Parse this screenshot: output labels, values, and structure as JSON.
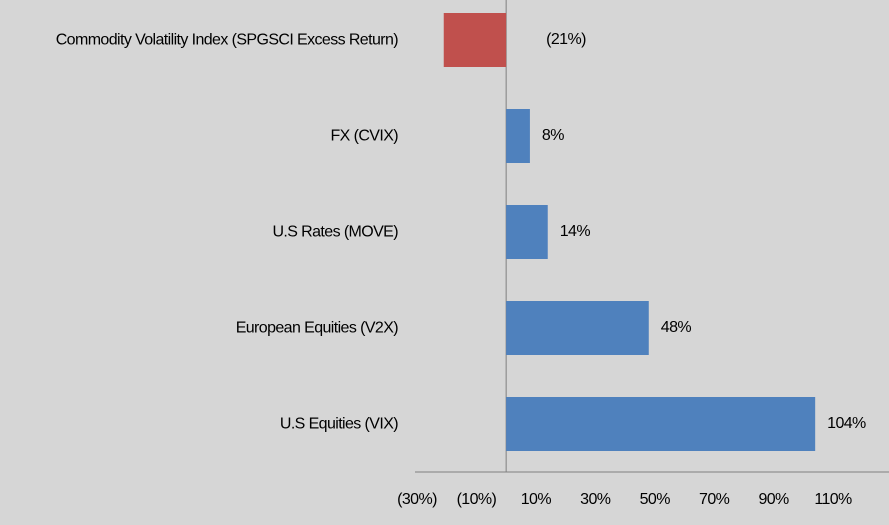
{
  "chart_data": {
    "type": "bar",
    "orientation": "horizontal",
    "categories": [
      "Commodity Volatility Index (SPGSCI Excess Return)",
      "FX (CVIX)",
      "U.S Rates (MOVE)",
      "European Equities (V2X)",
      "U.S Equities (VIX)"
    ],
    "values": [
      -21,
      8,
      14,
      48,
      104
    ],
    "value_labels": [
      "(21%)",
      "8%",
      "14%",
      "48%",
      "104%"
    ],
    "colors": [
      "#c0504d",
      "#4f81bd",
      "#4f81bd",
      "#4f81bd",
      "#4f81bd"
    ],
    "negative_label_color": "#ff0000",
    "xlim": [
      -30,
      110
    ],
    "xticks": [
      {
        "value": -30,
        "label": "(30%)"
      },
      {
        "value": -10,
        "label": "(10%)"
      },
      {
        "value": 10,
        "label": "10%"
      },
      {
        "value": 30,
        "label": "30%"
      },
      {
        "value": 50,
        "label": "50%"
      },
      {
        "value": 70,
        "label": "70%"
      },
      {
        "value": 90,
        "label": "90%"
      },
      {
        "value": 110,
        "label": "110%"
      }
    ]
  }
}
